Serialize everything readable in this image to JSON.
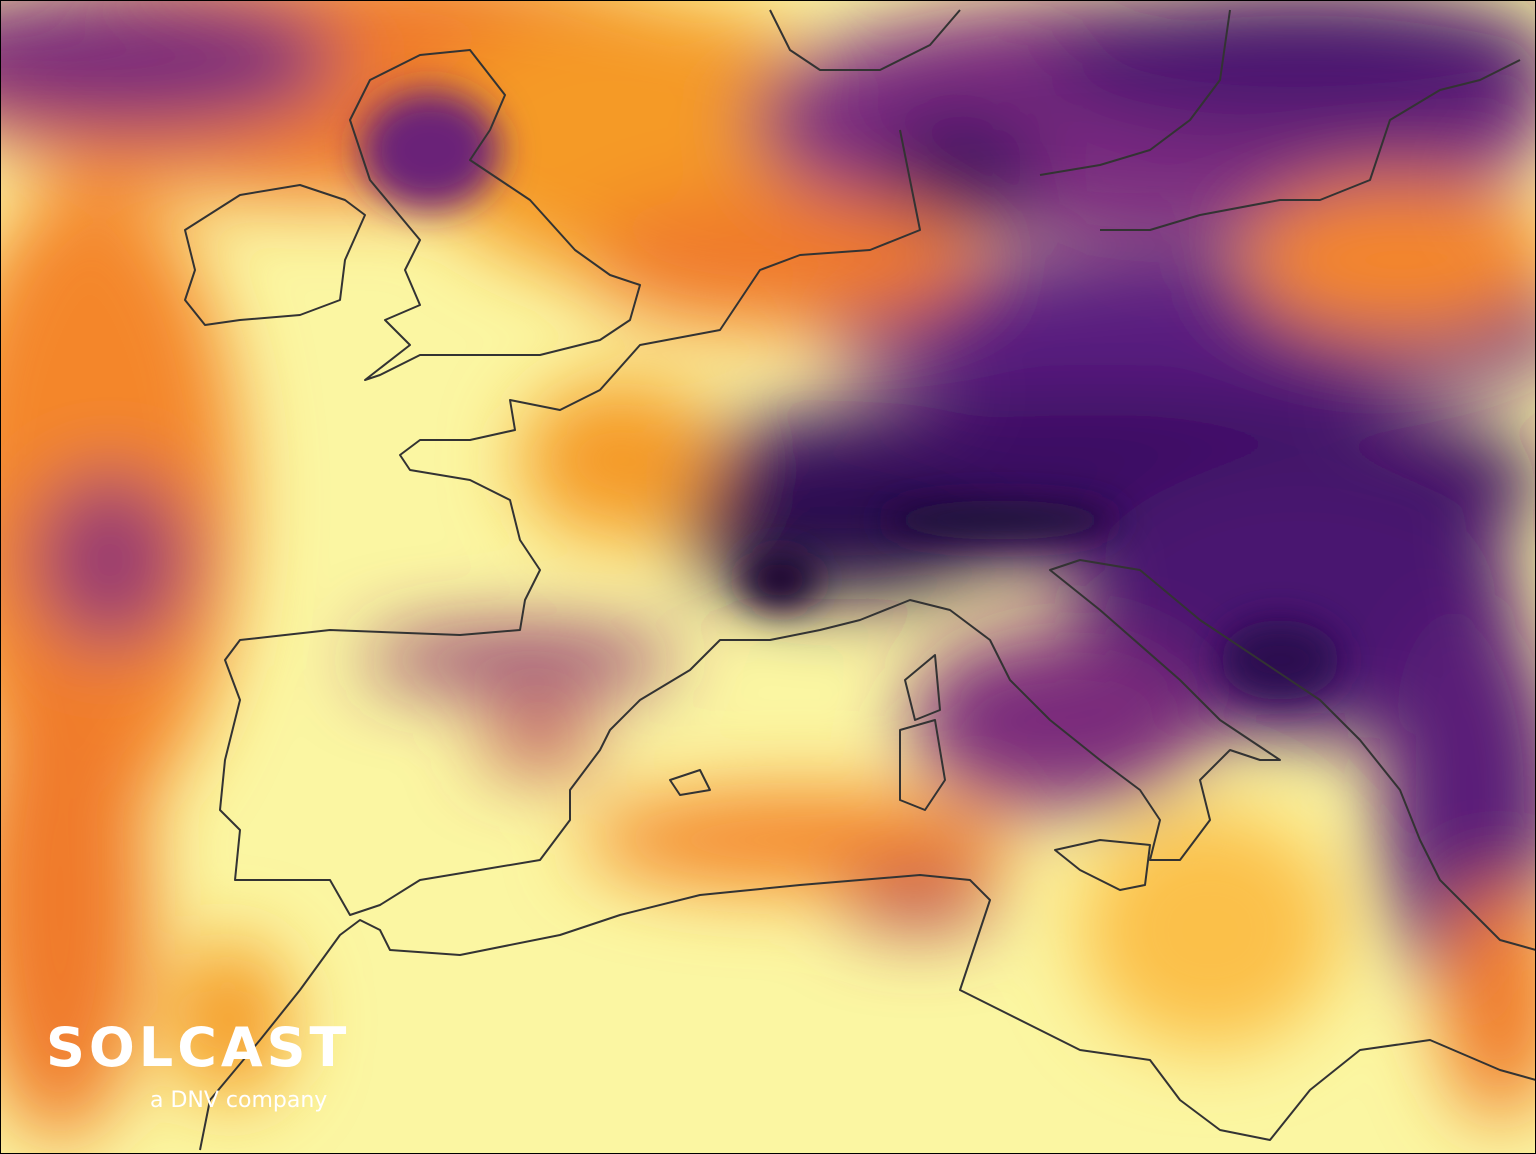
{
  "logo": {
    "name": "SOLCAST",
    "tagline": "a DNV company"
  }
}
